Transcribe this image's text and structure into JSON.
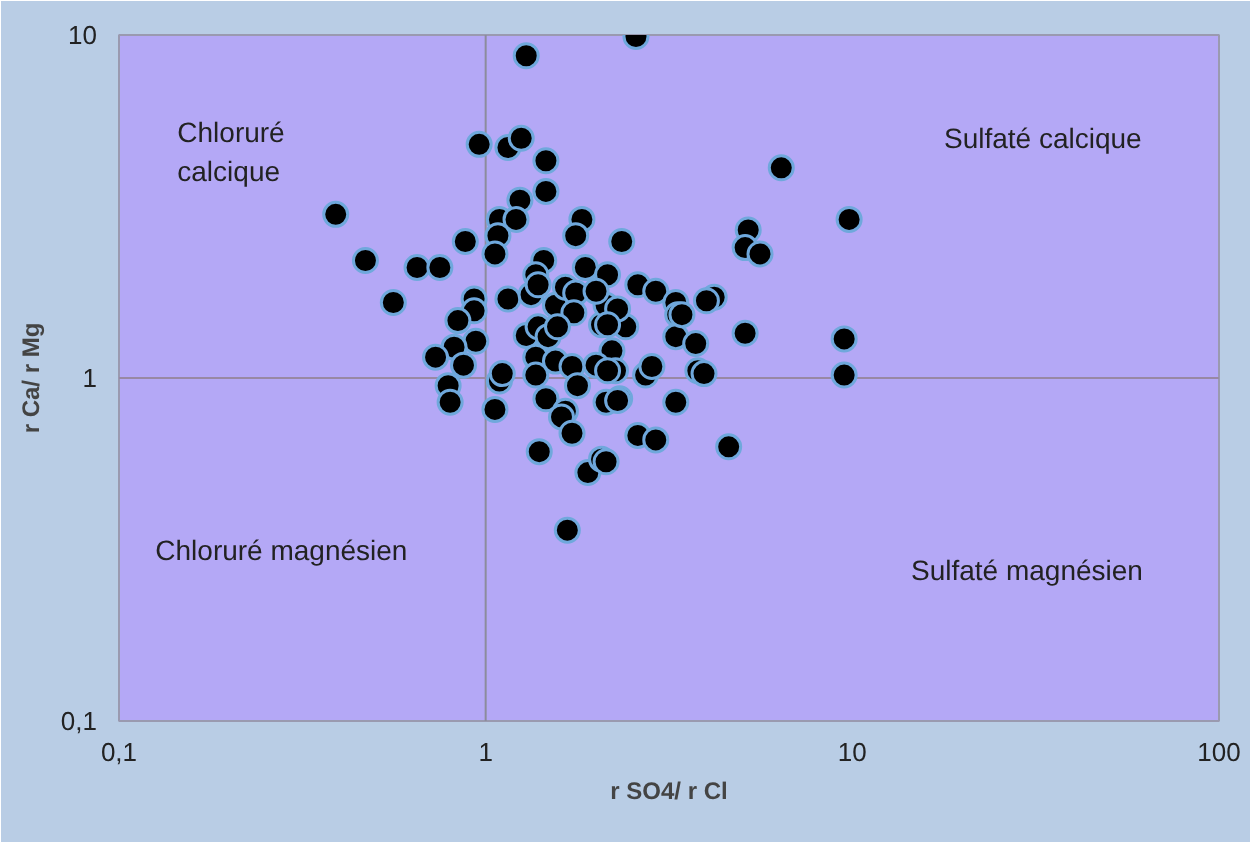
{
  "chart_data": {
    "type": "scatter",
    "xlabel": "r SO4/ r Cl",
    "ylabel": "r Ca/ r Mg",
    "log": "xy",
    "grid": false,
    "marker": "circle",
    "xlim": [
      0.1,
      100
    ],
    "ylim": [
      0.1,
      10
    ],
    "xticks": [
      {
        "value": 0.1,
        "label": "0,1"
      },
      1,
      10,
      100
    ],
    "yticks": [
      {
        "value": 0.1,
        "label": "0,1"
      },
      1,
      10
    ],
    "ref_lines": [
      {
        "axis": "x",
        "value": 1,
        "color": "#8c8c9c"
      },
      {
        "axis": "y",
        "value": 1,
        "color": "#9888a4"
      }
    ],
    "annotations": [
      "Chloruré\ncalcique",
      "Sulfaté calcique",
      "Chloruré magnésien",
      "Sulfaté magnésien"
    ],
    "series": [
      {
        "color": "#000000",
        "x": [
          2.57,
          1.29,
          0.96,
          1.15,
          1.25,
          1.46,
          1.46,
          1.24,
          0.39,
          1.09,
          1.21,
          1.08,
          0.88,
          1.06,
          1.83,
          1.76,
          2.35,
          0.47,
          0.65,
          0.75,
          0.56,
          1.44,
          1.37,
          1.87,
          2.15,
          2.6,
          2.91,
          3.3,
          0.93,
          0.93,
          0.84,
          0.94,
          0.82,
          0.73,
          0.87,
          0.79,
          0.8,
          1.06,
          1.09,
          1.11,
          1.15,
          1.33,
          1.39,
          1.55,
          1.65,
          1.76,
          1.74,
          1.29,
          1.39,
          1.48,
          1.57,
          1.37,
          1.37,
          1.55,
          1.72,
          1.78,
          1.46,
          1.65,
          1.61,
          1.72,
          1.4,
          1.9,
          2.07,
          1.67,
          2.07,
          2.21,
          2.0,
          2.26,
          2.13,
          2.32,
          2.6,
          2.91,
          2.73,
          2.84,
          3.3,
          2.41,
          3.34,
          3.3,
          2.13,
          2.29,
          2.0,
          3.79,
          6.4,
          9.8,
          5.2,
          5.1,
          5.6,
          3.43,
          4.2,
          4.0,
          2.15,
          3.74,
          5.1,
          9.5,
          9.5,
          3.94,
          2.15,
          2.29,
          4.6,
          2.13
        ],
        "values": [
          9.9,
          8.7,
          4.8,
          4.7,
          5.0,
          4.3,
          3.5,
          3.3,
          3.0,
          2.9,
          2.9,
          2.6,
          2.5,
          2.3,
          2.9,
          2.6,
          2.5,
          2.2,
          2.1,
          2.1,
          1.66,
          2.2,
          2.0,
          2.1,
          2.0,
          1.87,
          1.79,
          1.66,
          1.7,
          1.57,
          1.47,
          1.28,
          1.23,
          1.15,
          1.09,
          0.95,
          0.85,
          0.81,
          0.98,
          1.03,
          1.7,
          1.75,
          1.87,
          1.63,
          1.84,
          1.77,
          1.55,
          1.33,
          1.41,
          1.32,
          1.41,
          1.15,
          1.02,
          1.12,
          1.08,
          0.95,
          0.87,
          0.8,
          0.77,
          0.69,
          0.61,
          0.53,
          0.58,
          0.36,
          1.43,
          1.2,
          1.09,
          1.05,
          0.85,
          0.87,
          0.68,
          0.66,
          1.02,
          1.08,
          0.85,
          1.41,
          1.53,
          1.32,
          1.63,
          1.59,
          1.79,
          1.05,
          4.1,
          2.9,
          2.7,
          2.4,
          2.3,
          1.53,
          1.72,
          1.68,
          1.43,
          1.26,
          1.35,
          1.3,
          1.02,
          1.03,
          1.05,
          0.86,
          0.63,
          0.57
        ]
      }
    ]
  }
}
